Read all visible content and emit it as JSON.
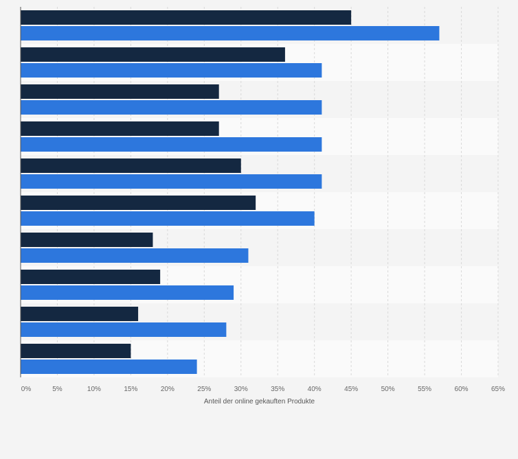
{
  "chart_data": {
    "type": "bar",
    "orientation": "horizontal",
    "categories": [
      "",
      "",
      "",
      "",
      "",
      "",
      "",
      "",
      "",
      ""
    ],
    "series": [
      {
        "values": [
          45,
          36,
          27,
          27,
          30,
          32,
          18,
          19,
          16,
          15
        ]
      },
      {
        "values": [
          57,
          41,
          41,
          41,
          41,
          40,
          31,
          29,
          28,
          24
        ]
      }
    ],
    "xlim": [
      0,
      65
    ],
    "x_ticks": [
      0,
      5,
      10,
      15,
      20,
      25,
      30,
      35,
      40,
      45,
      50,
      55,
      60,
      65
    ],
    "tick_labels": [
      "0%",
      "5%",
      "10%",
      "15%",
      "20%",
      "25%",
      "30%",
      "35%",
      "40%",
      "45%",
      "50%",
      "55%",
      "60%",
      "65%"
    ],
    "xlabel": "Anteil der online gekauften Produkte",
    "grid": true,
    "colors": {
      "series": [
        "#142841",
        "#2d77dd"
      ],
      "grid": "#d9d9d9",
      "band": "#fafafa",
      "background": "#f4f4f4"
    }
  }
}
